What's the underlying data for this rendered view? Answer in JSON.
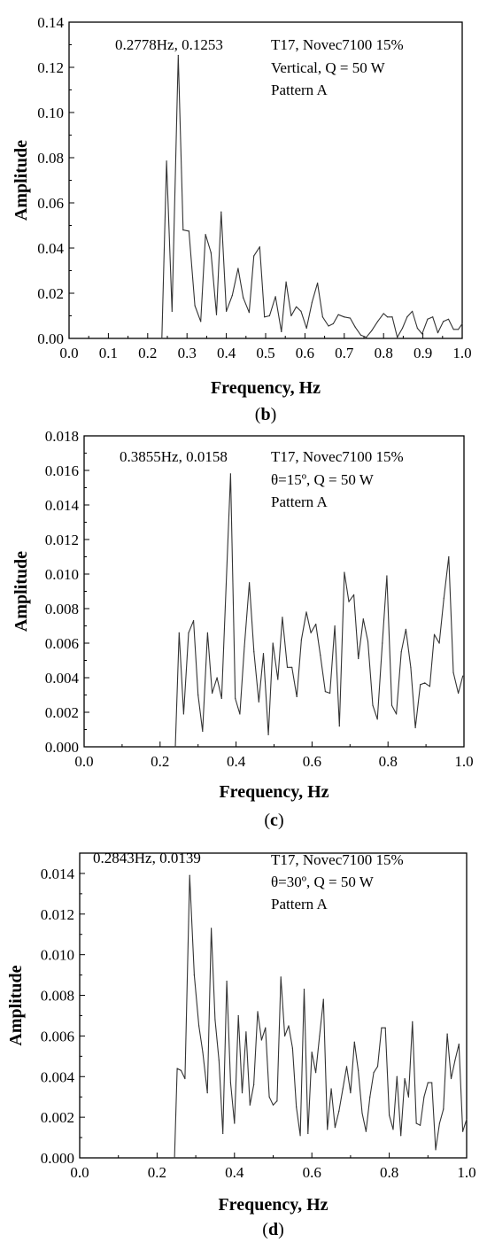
{
  "chart_data": [
    {
      "type": "line",
      "panel": "b",
      "caption": "b",
      "xlabel": "Frequency, Hz",
      "ylabel": "Amplitude",
      "xlim": [
        0.0,
        1.0
      ],
      "ylim": [
        0.0,
        0.14
      ],
      "x_ticks": [
        "0.0",
        "0.1",
        "0.2",
        "0.3",
        "0.4",
        "0.5",
        "0.6",
        "0.7",
        "0.8",
        "0.9",
        "1.0"
      ],
      "y_ticks": [
        "0.00",
        "0.02",
        "0.04",
        "0.06",
        "0.08",
        "0.10",
        "0.12",
        "0.14"
      ],
      "annotations": [
        "0.2778Hz, 0.1253",
        "T17, Novec7100 15%",
        "Vertical, Q = 50 W",
        "Pattern A"
      ],
      "peak": {
        "x": 0.2778,
        "y": 0.1253
      },
      "series": [
        {
          "x": [
            0.236,
            0.248,
            0.262,
            0.2778,
            0.29,
            0.305,
            0.32,
            0.335,
            0.347,
            0.361,
            0.375,
            0.387,
            0.4,
            0.415,
            0.43,
            0.443,
            0.458,
            0.47,
            0.485,
            0.497,
            0.51,
            0.525,
            0.54,
            0.552,
            0.565,
            0.578,
            0.59,
            0.604,
            0.618,
            0.632,
            0.645,
            0.66,
            0.672,
            0.685,
            0.7,
            0.715,
            0.728,
            0.742,
            0.756,
            0.77,
            0.785,
            0.8,
            0.81,
            0.822,
            0.835,
            0.848,
            0.86,
            0.873,
            0.886,
            0.898,
            0.912,
            0.925,
            0.938,
            0.952,
            0.965,
            0.978,
            0.99,
            1.0
          ],
          "y": [
            0.0,
            0.0785,
            0.012,
            0.1253,
            0.048,
            0.0475,
            0.0145,
            0.0075,
            0.046,
            0.038,
            0.0105,
            0.056,
            0.012,
            0.019,
            0.031,
            0.018,
            0.0115,
            0.0365,
            0.0405,
            0.0095,
            0.01,
            0.0185,
            0.003,
            0.025,
            0.01,
            0.014,
            0.012,
            0.0045,
            0.016,
            0.0245,
            0.0095,
            0.0055,
            0.0065,
            0.0105,
            0.0095,
            0.009,
            0.005,
            0.0015,
            0.0005,
            0.0035,
            0.0075,
            0.011,
            0.0095,
            0.0095,
            0.0005,
            0.0045,
            0.0095,
            0.012,
            0.0045,
            0.002,
            0.0085,
            0.0095,
            0.0025,
            0.0075,
            0.0085,
            0.004,
            0.004,
            0.0065
          ]
        }
      ]
    },
    {
      "type": "line",
      "panel": "c",
      "caption": "c",
      "xlabel": "Frequency, Hz",
      "ylabel": "Amplitude",
      "xlim": [
        0.0,
        1.0
      ],
      "ylim": [
        0.0,
        0.018
      ],
      "x_ticks": [
        "0.0",
        "0.2",
        "0.4",
        "0.6",
        "0.8",
        "1.0"
      ],
      "y_ticks": [
        "0.000",
        "0.002",
        "0.004",
        "0.006",
        "0.008",
        "0.010",
        "0.012",
        "0.014",
        "0.016",
        "0.018"
      ],
      "annotations": [
        "0.3855Hz, 0.0158",
        "T17, Novec7100 15%",
        "θ=15º, Q = 50 W",
        "Pattern A"
      ],
      "peak": {
        "x": 0.3855,
        "y": 0.0158
      },
      "series": [
        {
          "x": [
            0.24,
            0.25,
            0.262,
            0.275,
            0.288,
            0.3,
            0.312,
            0.325,
            0.337,
            0.35,
            0.362,
            0.3855,
            0.398,
            0.41,
            0.422,
            0.435,
            0.447,
            0.46,
            0.472,
            0.485,
            0.497,
            0.51,
            0.522,
            0.535,
            0.547,
            0.56,
            0.572,
            0.585,
            0.597,
            0.61,
            0.622,
            0.635,
            0.647,
            0.66,
            0.672,
            0.685,
            0.697,
            0.71,
            0.722,
            0.735,
            0.747,
            0.76,
            0.772,
            0.785,
            0.797,
            0.81,
            0.822,
            0.835,
            0.847,
            0.86,
            0.872,
            0.885,
            0.897,
            0.91,
            0.922,
            0.935,
            0.947,
            0.96,
            0.972,
            0.985,
            0.997
          ],
          "y": [
            0.0,
            0.0066,
            0.0019,
            0.0066,
            0.0073,
            0.003,
            0.0009,
            0.0066,
            0.0031,
            0.004,
            0.0028,
            0.0158,
            0.0028,
            0.0019,
            0.0058,
            0.0095,
            0.0055,
            0.0026,
            0.0054,
            0.0007,
            0.006,
            0.0039,
            0.0075,
            0.0046,
            0.0046,
            0.0029,
            0.0062,
            0.0078,
            0.0066,
            0.0071,
            0.0053,
            0.0032,
            0.0031,
            0.007,
            0.0012,
            0.0101,
            0.0084,
            0.0088,
            0.0051,
            0.0074,
            0.0061,
            0.0024,
            0.0016,
            0.006,
            0.0099,
            0.0024,
            0.0019,
            0.0055,
            0.0068,
            0.0046,
            0.0011,
            0.0036,
            0.0037,
            0.0035,
            0.0065,
            0.006,
            0.0086,
            0.011,
            0.0043,
            0.0031,
            0.0041
          ]
        }
      ]
    },
    {
      "type": "line",
      "panel": "d",
      "caption": "d",
      "xlabel": "Frequency, Hz",
      "ylabel": "Amplitude",
      "xlim": [
        0.0,
        1.0
      ],
      "ylim": [
        0.0,
        0.015
      ],
      "x_ticks": [
        "0.0",
        "0.2",
        "0.4",
        "0.6",
        "0.8",
        "1.0"
      ],
      "y_ticks": [
        "0.000",
        "0.002",
        "0.004",
        "0.006",
        "0.008",
        "0.010",
        "0.012",
        "0.014"
      ],
      "annotations": [
        "0.2843Hz, 0.0139",
        "T17, Novec7100 15%",
        "θ=30º, Q = 50 W",
        "Pattern A"
      ],
      "peak": {
        "x": 0.2843,
        "y": 0.0139
      },
      "series": [
        {
          "x": [
            0.245,
            0.252,
            0.262,
            0.272,
            0.2843,
            0.296,
            0.308,
            0.318,
            0.33,
            0.34,
            0.35,
            0.36,
            0.37,
            0.38,
            0.39,
            0.4,
            0.41,
            0.42,
            0.43,
            0.44,
            0.45,
            0.46,
            0.47,
            0.48,
            0.49,
            0.5,
            0.51,
            0.52,
            0.53,
            0.54,
            0.55,
            0.56,
            0.57,
            0.58,
            0.59,
            0.6,
            0.61,
            0.62,
            0.63,
            0.64,
            0.65,
            0.66,
            0.67,
            0.68,
            0.69,
            0.7,
            0.71,
            0.72,
            0.73,
            0.74,
            0.75,
            0.76,
            0.77,
            0.78,
            0.79,
            0.8,
            0.81,
            0.82,
            0.83,
            0.84,
            0.85,
            0.86,
            0.87,
            0.88,
            0.89,
            0.9,
            0.91,
            0.92,
            0.93,
            0.94,
            0.95,
            0.96,
            0.97,
            0.98,
            0.99,
            1.0
          ],
          "y": [
            0.0,
            0.0044,
            0.0043,
            0.0039,
            0.0139,
            0.009,
            0.0065,
            0.0052,
            0.0032,
            0.0113,
            0.0068,
            0.0048,
            0.0012,
            0.0087,
            0.0037,
            0.0017,
            0.007,
            0.0032,
            0.0062,
            0.0026,
            0.0036,
            0.0072,
            0.0058,
            0.0064,
            0.003,
            0.0026,
            0.0028,
            0.0089,
            0.006,
            0.0065,
            0.0054,
            0.0025,
            0.0011,
            0.0083,
            0.0012,
            0.0052,
            0.0042,
            0.006,
            0.0078,
            0.0014,
            0.0034,
            0.0015,
            0.0023,
            0.0034,
            0.0045,
            0.0032,
            0.0057,
            0.0043,
            0.0022,
            0.0013,
            0.003,
            0.0042,
            0.0045,
            0.0064,
            0.0064,
            0.0021,
            0.0014,
            0.004,
            0.0011,
            0.0039,
            0.003,
            0.0067,
            0.0017,
            0.0016,
            0.003,
            0.0037,
            0.0037,
            0.0004,
            0.0017,
            0.0024,
            0.0061,
            0.0039,
            0.0048,
            0.0056,
            0.0013,
            0.0019
          ]
        }
      ]
    }
  ]
}
